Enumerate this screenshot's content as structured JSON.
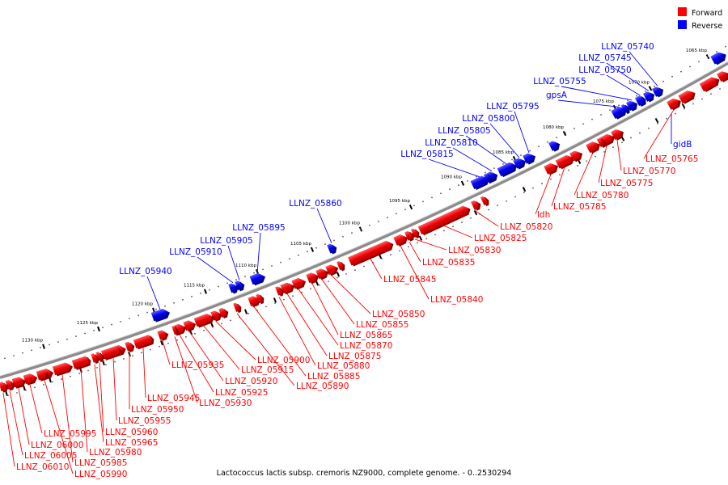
{
  "legend": {
    "forward_label": "Forward",
    "reverse_label": "Reverse",
    "forward_color": "#ff0000",
    "reverse_color": "#0000ff"
  },
  "caption": "Lactococcus lactis subsp. cremoris NZ9000, complete genome. - 0..2530294",
  "scale_ticks": [
    "1065 kbp",
    "1070 kbp",
    "1075 kbp",
    "1080 kbp",
    "1085 kbp",
    "1090 kbp",
    "1095 kbp",
    "1100 kbp",
    "1105 kbp",
    "1110 kbp",
    "1115 kbp",
    "1120 kbp",
    "1125 kbp",
    "1130 kbp"
  ],
  "reverse_genes": [
    "LLNZ_05740",
    "LLNZ_05745",
    "LLNZ_05750",
    "LLNZ_05755",
    "gpsA",
    "gidB",
    "LLNZ_05795",
    "LLNZ_05800",
    "LLNZ_05805",
    "LLNZ_05810",
    "LLNZ_05815",
    "LLNZ_05860",
    "LLNZ_05895",
    "LLNZ_05905",
    "LLNZ_05910",
    "LLNZ_05940"
  ],
  "forward_genes": [
    "LLNZ_05765",
    "LLNZ_05770",
    "LLNZ_05775",
    "LLNZ_05780",
    "LLNZ_05785",
    "ldh",
    "LLNZ_05820",
    "LLNZ_05825",
    "LLNZ_05830",
    "LLNZ_05835",
    "LLNZ_05840",
    "LLNZ_05845",
    "LLNZ_05850",
    "LLNZ_05855",
    "LLNZ_05865",
    "LLNZ_05870",
    "LLNZ_05875",
    "LLNZ_05880",
    "LLNZ_05885",
    "LLNZ_05890",
    "LLNZ_05900",
    "LLNZ_05915",
    "LLNZ_05920",
    "LLNZ_05925",
    "LLNZ_05930",
    "LLNZ_05935",
    "LLNZ_05945",
    "LLNZ_05950",
    "LLNZ_05955",
    "LLNZ_05960",
    "LLNZ_05965",
    "LLNZ_05980",
    "LLNZ_05985",
    "LLNZ_05990",
    "LLNZ_05995",
    "LLNZ_06000",
    "LLNZ_06005",
    "LLNZ_06010"
  ]
}
